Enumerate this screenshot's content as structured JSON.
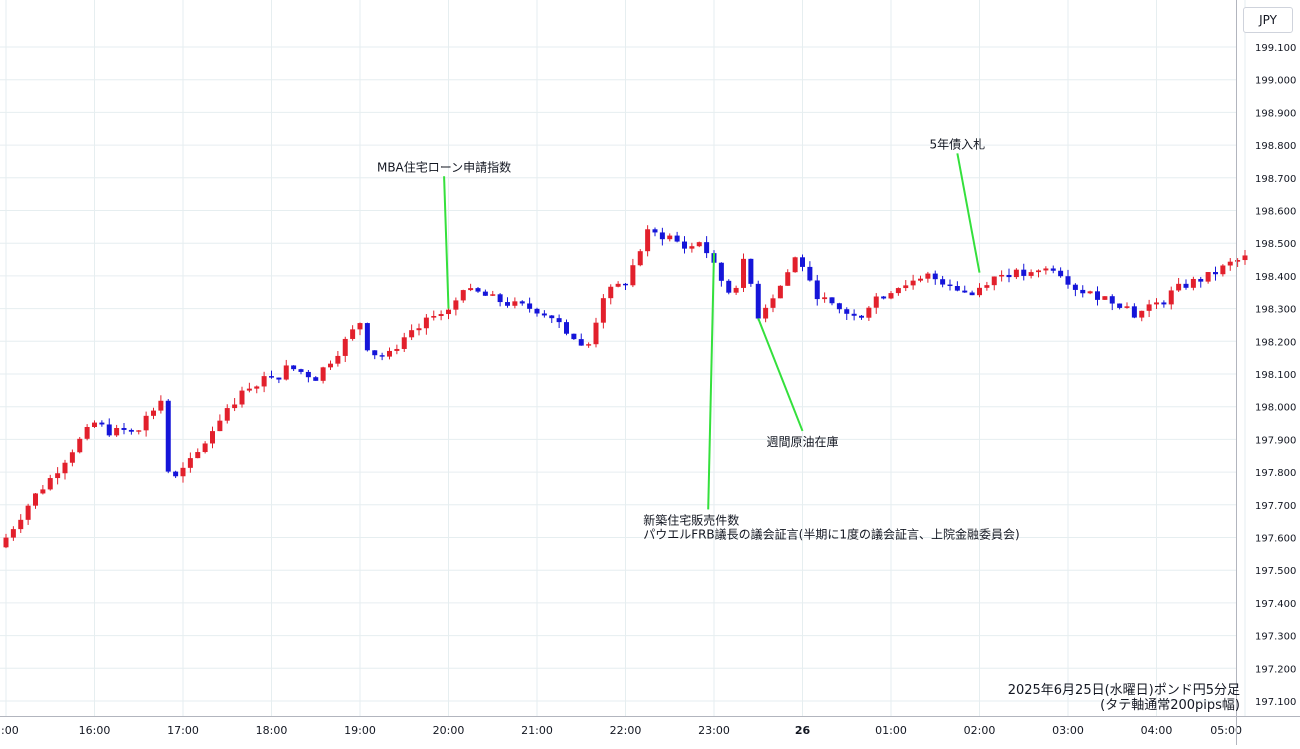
{
  "header": {
    "currency": "JPY"
  },
  "caption": {
    "line1": "2025年6月25日(水曜日)ポンド円5分足",
    "line2": "(タテ軸通常200pips幅)"
  },
  "colors": {
    "up": "#e2202c",
    "down": "#1515d9",
    "grid": "#e6eef0",
    "annotation_line": "#34e03c",
    "text": "#131722"
  },
  "chart_data": {
    "type": "candlestick",
    "title": "",
    "xlabel": "",
    "ylabel": "",
    "ylim": [
      197.08,
      199.2
    ],
    "y_ticks": [
      "199.100",
      "199.000",
      "198.900",
      "198.800",
      "198.700",
      "198.600",
      "198.500",
      "198.400",
      "198.300",
      "198.200",
      "198.100",
      "198.000",
      "197.900",
      "197.800",
      "197.700",
      "197.600",
      "197.500",
      "197.400",
      "197.300",
      "197.200",
      "197.100"
    ],
    "x_ticks": [
      {
        "label": ":00",
        "h": 15.0,
        "bold": false
      },
      {
        "label": "16:00",
        "h": 16.0,
        "bold": false
      },
      {
        "label": "17:00",
        "h": 17.0,
        "bold": false
      },
      {
        "label": "18:00",
        "h": 18.0,
        "bold": false
      },
      {
        "label": "19:00",
        "h": 19.0,
        "bold": false
      },
      {
        "label": "20:00",
        "h": 20.0,
        "bold": false
      },
      {
        "label": "21:00",
        "h": 21.0,
        "bold": false
      },
      {
        "label": "22:00",
        "h": 22.0,
        "bold": false
      },
      {
        "label": "23:00",
        "h": 23.0,
        "bold": false
      },
      {
        "label": "26",
        "h": 24.0,
        "bold": true
      },
      {
        "label": "01:00",
        "h": 25.0,
        "bold": false
      },
      {
        "label": "02:00",
        "h": 26.0,
        "bold": false
      },
      {
        "label": "03:00",
        "h": 27.0,
        "bold": false
      },
      {
        "label": "04:00",
        "h": 28.0,
        "bold": false
      },
      {
        "label": "05:00",
        "h": 29.0,
        "bold": false
      }
    ],
    "anchors": [
      {
        "h": 15.0,
        "c": 197.6
      },
      {
        "h": 15.3,
        "c": 197.72
      },
      {
        "h": 15.5,
        "c": 197.78
      },
      {
        "h": 15.75,
        "c": 197.87
      },
      {
        "h": 16.0,
        "c": 197.95
      },
      {
        "h": 16.2,
        "c": 197.92
      },
      {
        "h": 16.5,
        "c": 197.94
      },
      {
        "h": 16.75,
        "c": 198.02
      },
      {
        "h": 16.85,
        "c": 197.76
      },
      {
        "h": 17.15,
        "c": 197.85
      },
      {
        "h": 17.5,
        "c": 198.0
      },
      {
        "h": 17.85,
        "c": 198.08
      },
      {
        "h": 18.2,
        "c": 198.12
      },
      {
        "h": 18.5,
        "c": 198.09
      },
      {
        "h": 18.75,
        "c": 198.17
      },
      {
        "h": 19.0,
        "c": 198.26
      },
      {
        "h": 19.1,
        "c": 198.17
      },
      {
        "h": 19.3,
        "c": 198.15
      },
      {
        "h": 19.5,
        "c": 198.2
      },
      {
        "h": 19.75,
        "c": 198.26
      },
      {
        "h": 20.0,
        "c": 198.3
      },
      {
        "h": 20.2,
        "c": 198.36
      },
      {
        "h": 20.5,
        "c": 198.33
      },
      {
        "h": 20.75,
        "c": 198.31
      },
      {
        "h": 21.15,
        "c": 198.29
      },
      {
        "h": 21.45,
        "c": 198.2
      },
      {
        "h": 21.55,
        "c": 198.16
      },
      {
        "h": 21.75,
        "c": 198.34
      },
      {
        "h": 22.0,
        "c": 198.38
      },
      {
        "h": 22.25,
        "c": 198.53
      },
      {
        "h": 22.5,
        "c": 198.52
      },
      {
        "h": 22.7,
        "c": 198.48
      },
      {
        "h": 22.85,
        "c": 198.51
      },
      {
        "h": 23.05,
        "c": 198.4
      },
      {
        "h": 23.2,
        "c": 198.34
      },
      {
        "h": 23.35,
        "c": 198.45
      },
      {
        "h": 23.5,
        "c": 198.28
      },
      {
        "h": 23.75,
        "c": 198.37
      },
      {
        "h": 23.95,
        "c": 198.47
      },
      {
        "h": 24.1,
        "c": 198.36
      },
      {
        "h": 24.35,
        "c": 198.3
      },
      {
        "h": 24.6,
        "c": 198.28
      },
      {
        "h": 24.85,
        "c": 198.34
      },
      {
        "h": 25.1,
        "c": 198.37
      },
      {
        "h": 25.4,
        "c": 198.4
      },
      {
        "h": 25.65,
        "c": 198.38
      },
      {
        "h": 25.9,
        "c": 198.34
      },
      {
        "h": 26.1,
        "c": 198.39
      },
      {
        "h": 26.3,
        "c": 198.41
      },
      {
        "h": 26.6,
        "c": 198.4
      },
      {
        "h": 26.85,
        "c": 198.43
      },
      {
        "h": 27.1,
        "c": 198.36
      },
      {
        "h": 27.35,
        "c": 198.34
      },
      {
        "h": 27.65,
        "c": 198.31
      },
      {
        "h": 27.75,
        "c": 198.28
      },
      {
        "h": 28.0,
        "c": 198.32
      },
      {
        "h": 28.3,
        "c": 198.37
      },
      {
        "h": 28.6,
        "c": 198.4
      },
      {
        "h": 28.85,
        "c": 198.44
      },
      {
        "h": 29.05,
        "c": 198.46
      }
    ],
    "annotations": [
      {
        "lines": [
          "MBA住宅ローン申請指数"
        ],
        "target_h": 20.0,
        "target_price": 198.3,
        "text_h": 19.95,
        "text_price": 198.72,
        "align": "middle"
      },
      {
        "lines": [
          "5年債入札"
        ],
        "target_h": 26.0,
        "target_price": 198.41,
        "text_h": 25.75,
        "text_price": 198.79,
        "align": "middle"
      },
      {
        "lines": [
          "週間原油在庫"
        ],
        "target_h": 23.5,
        "target_price": 198.27,
        "text_h": 24.0,
        "text_price": 197.88,
        "align": "middle"
      },
      {
        "lines": [
          "新築住宅販売件数",
          "パウエルFRB議長の議会証言(半期に1度の議会証言、上院金融委員会)"
        ],
        "target_h": 23.0,
        "target_price": 198.47,
        "text_h": 22.2,
        "text_price": 197.64,
        "align": "start"
      }
    ]
  }
}
